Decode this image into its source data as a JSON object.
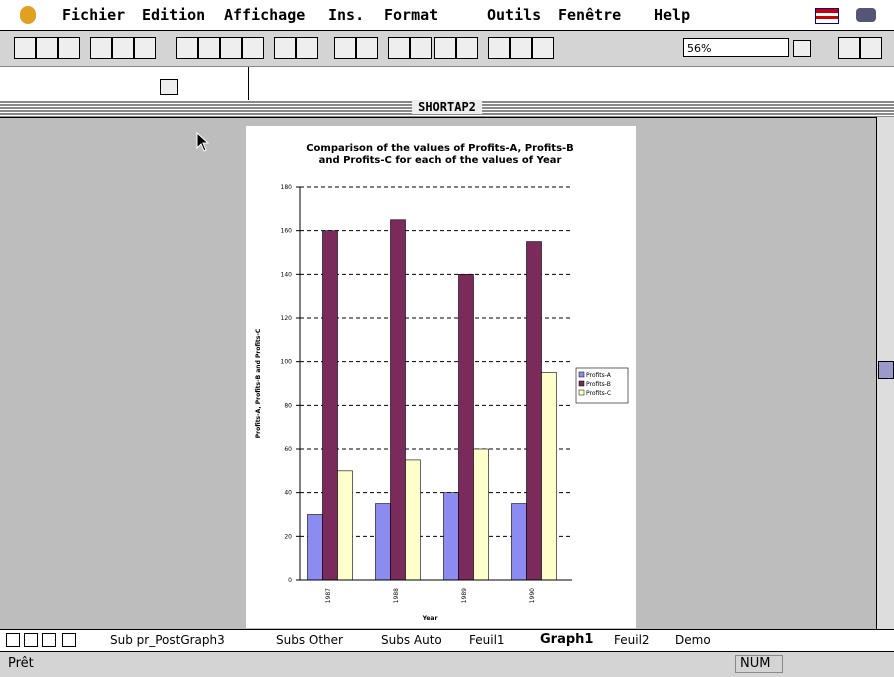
{
  "menu": [
    "Fichier",
    "Edition",
    "Affichage",
    "Ins.",
    "Format",
    "Outils",
    "Fenêtre",
    "Help"
  ],
  "toolbar": {
    "zoom": "56%"
  },
  "window": {
    "title": "SHORTAP2"
  },
  "chart_data": {
    "type": "bar",
    "title": "Comparison of the values of Profits-A, Profits-B and Profits-C for each of the values of Year",
    "x_label": "Year",
    "y_label": "Profits-A, Profits-B and Profits-C",
    "categories": [
      "1987",
      "1988",
      "1989",
      "1990"
    ],
    "series": [
      {
        "name": "Profits-A",
        "color": "#8c8cf0",
        "values": [
          30,
          35,
          40,
          35
        ]
      },
      {
        "name": "Profits-B",
        "color": "#7b2a5c",
        "values": [
          160,
          165,
          140,
          155
        ]
      },
      {
        "name": "Profits-C",
        "color": "#ffffcc",
        "values": [
          50,
          55,
          60,
          95
        ]
      }
    ],
    "ylim": [
      0,
      180
    ],
    "yticks": [
      0,
      20,
      40,
      60,
      80,
      100,
      120,
      140,
      160,
      180
    ],
    "grid": true,
    "legend": "right"
  },
  "tabs": [
    "Sub pr_PostGraph3",
    "Subs Other",
    "Subs Auto",
    "Feuil1",
    "Graph1",
    "Feuil2",
    "Demo"
  ],
  "active_tab": 4,
  "status": {
    "text": "Prêt",
    "num": "NUM"
  }
}
